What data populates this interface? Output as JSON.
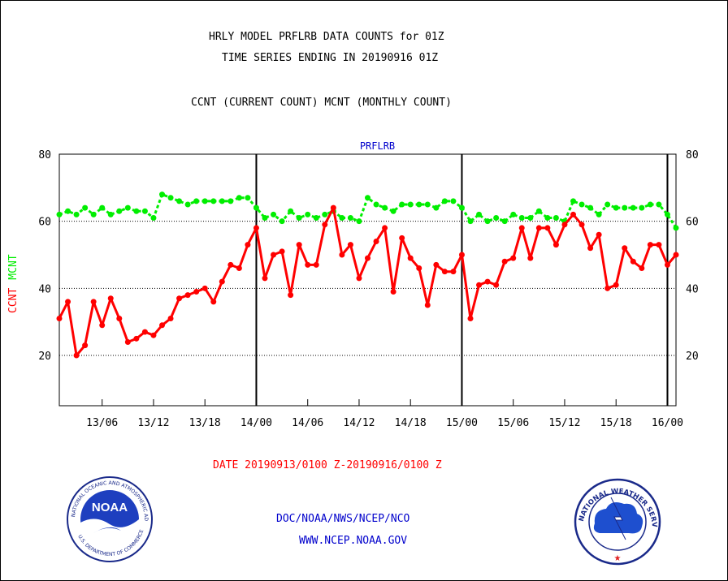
{
  "header": {
    "line1": "HRLY MODEL PRFLRB DATA COUNTS for 01Z",
    "line2": "TIME SERIES ENDING IN 20190916 01Z",
    "line3": "CCNT (CURRENT COUNT) MCNT (MONTHLY COUNT)"
  },
  "footer": {
    "date_range": "DATE 20190913/0100 Z-20190916/0100 Z",
    "org": "DOC/NOAA/NWS/NCEP/NCO",
    "url": "WWW.NCEP.NOAA.GOV"
  },
  "logos": {
    "noaa_text": "NOAA",
    "noaa_ring": "NATIONAL OCEANIC AND ATMOSPHERIC ADMINISTRATION",
    "noaa_ring_bottom": "U.S. DEPARTMENT OF COMMERCE",
    "nws_ring": "NATIONAL WEATHER SERVICE"
  },
  "colors": {
    "ccnt": "#ff0000",
    "mcnt": "#00ee00",
    "title_blue": "#0000cc",
    "text": "#000000"
  },
  "chart_data": {
    "type": "line",
    "title": "PRFLRB",
    "ylabel_left": [
      "CCNT",
      "MCNT"
    ],
    "ylim": [
      5,
      80
    ],
    "yticks": [
      20,
      40,
      60,
      80
    ],
    "grid": "dotted horizontal at 20, 40, 60",
    "x_start": "13/01",
    "x_end": "16/01",
    "xticks": [
      "13/06",
      "13/12",
      "13/18",
      "14/00",
      "14/06",
      "14/12",
      "14/18",
      "15/00",
      "15/06",
      "15/12",
      "15/18",
      "16/00"
    ],
    "day_dividers": [
      "14/00",
      "15/00",
      "16/00"
    ],
    "series": [
      {
        "name": "CCNT",
        "color": "#ff0000",
        "values": [
          31,
          36,
          20,
          23,
          36,
          29,
          37,
          31,
          24,
          25,
          27,
          26,
          29,
          31,
          37,
          38,
          39,
          40,
          36,
          42,
          47,
          46,
          53,
          58,
          43,
          50,
          51,
          38,
          53,
          47,
          47,
          59,
          64,
          50,
          53,
          43,
          49,
          54,
          58,
          39,
          55,
          49,
          46,
          35,
          47,
          45,
          45,
          50,
          31,
          41,
          42,
          41,
          48,
          49,
          58,
          49,
          58,
          58,
          53,
          59,
          62,
          59,
          52,
          56,
          40,
          41,
          52,
          48,
          46,
          53,
          53,
          47,
          50
        ]
      },
      {
        "name": "MCNT",
        "color": "#00ee00",
        "values": [
          62,
          63,
          62,
          64,
          62,
          64,
          62,
          63,
          64,
          63,
          63,
          61,
          68,
          67,
          66,
          65,
          66,
          66,
          66,
          66,
          66,
          67,
          67,
          64,
          61,
          62,
          60,
          63,
          61,
          62,
          61,
          62,
          63,
          61,
          61,
          60,
          67,
          65,
          64,
          63,
          65,
          65,
          65,
          65,
          64,
          66,
          66,
          64,
          60,
          62,
          60,
          61,
          60,
          62,
          61,
          61,
          63,
          61,
          61,
          60,
          66,
          65,
          64,
          62,
          65,
          64,
          64,
          64,
          64,
          65,
          65,
          62,
          58
        ]
      }
    ]
  }
}
